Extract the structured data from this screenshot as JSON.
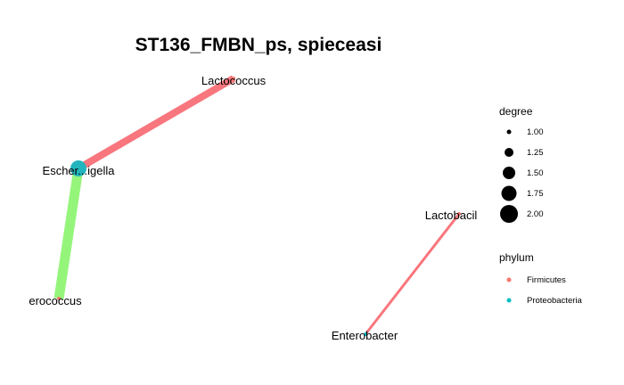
{
  "title": "ST136_FMBN_ps, spieceasi",
  "nodes": [
    {
      "id": "lactococcus",
      "label": "Lactococcus",
      "phylum": "Firmicutes",
      "degree": 1.0
    },
    {
      "id": "escherichia",
      "label": "Escher...igella",
      "phylum": "Proteobacteria",
      "degree": 2.0
    },
    {
      "id": "enterococcus",
      "label": "erococcus",
      "phylum": "Firmicutes",
      "degree": 1.0
    },
    {
      "id": "lactobacillus",
      "label": "Lactobacil",
      "phylum": "Firmicutes",
      "degree": 1.0
    },
    {
      "id": "enterobacter",
      "label": "Enterobacter",
      "phylum": "Proteobacteria",
      "degree": 1.0
    }
  ],
  "edges": [
    {
      "from": "escherichia",
      "to": "lactococcus",
      "color": "#f8767d"
    },
    {
      "from": "escherichia",
      "to": "enterococcus",
      "color": "#95f57b"
    },
    {
      "from": "lactobacillus",
      "to": "enterobacter",
      "color": "#f8767d"
    }
  ],
  "legend": {
    "degree_title": "degree",
    "degree_items": [
      "1.00",
      "1.25",
      "1.50",
      "1.75",
      "2.00"
    ],
    "phylum_title": "phylum",
    "phylum_items": [
      {
        "label": "Firmicutes",
        "color": "#f8766d"
      },
      {
        "label": "Proteobacteria",
        "color": "#00bfc4"
      }
    ]
  },
  "colors": {
    "firmicutes": "#f8766d",
    "proteobacteria": "#00bfc4",
    "node_proteobacteria": "#22b5bd"
  }
}
